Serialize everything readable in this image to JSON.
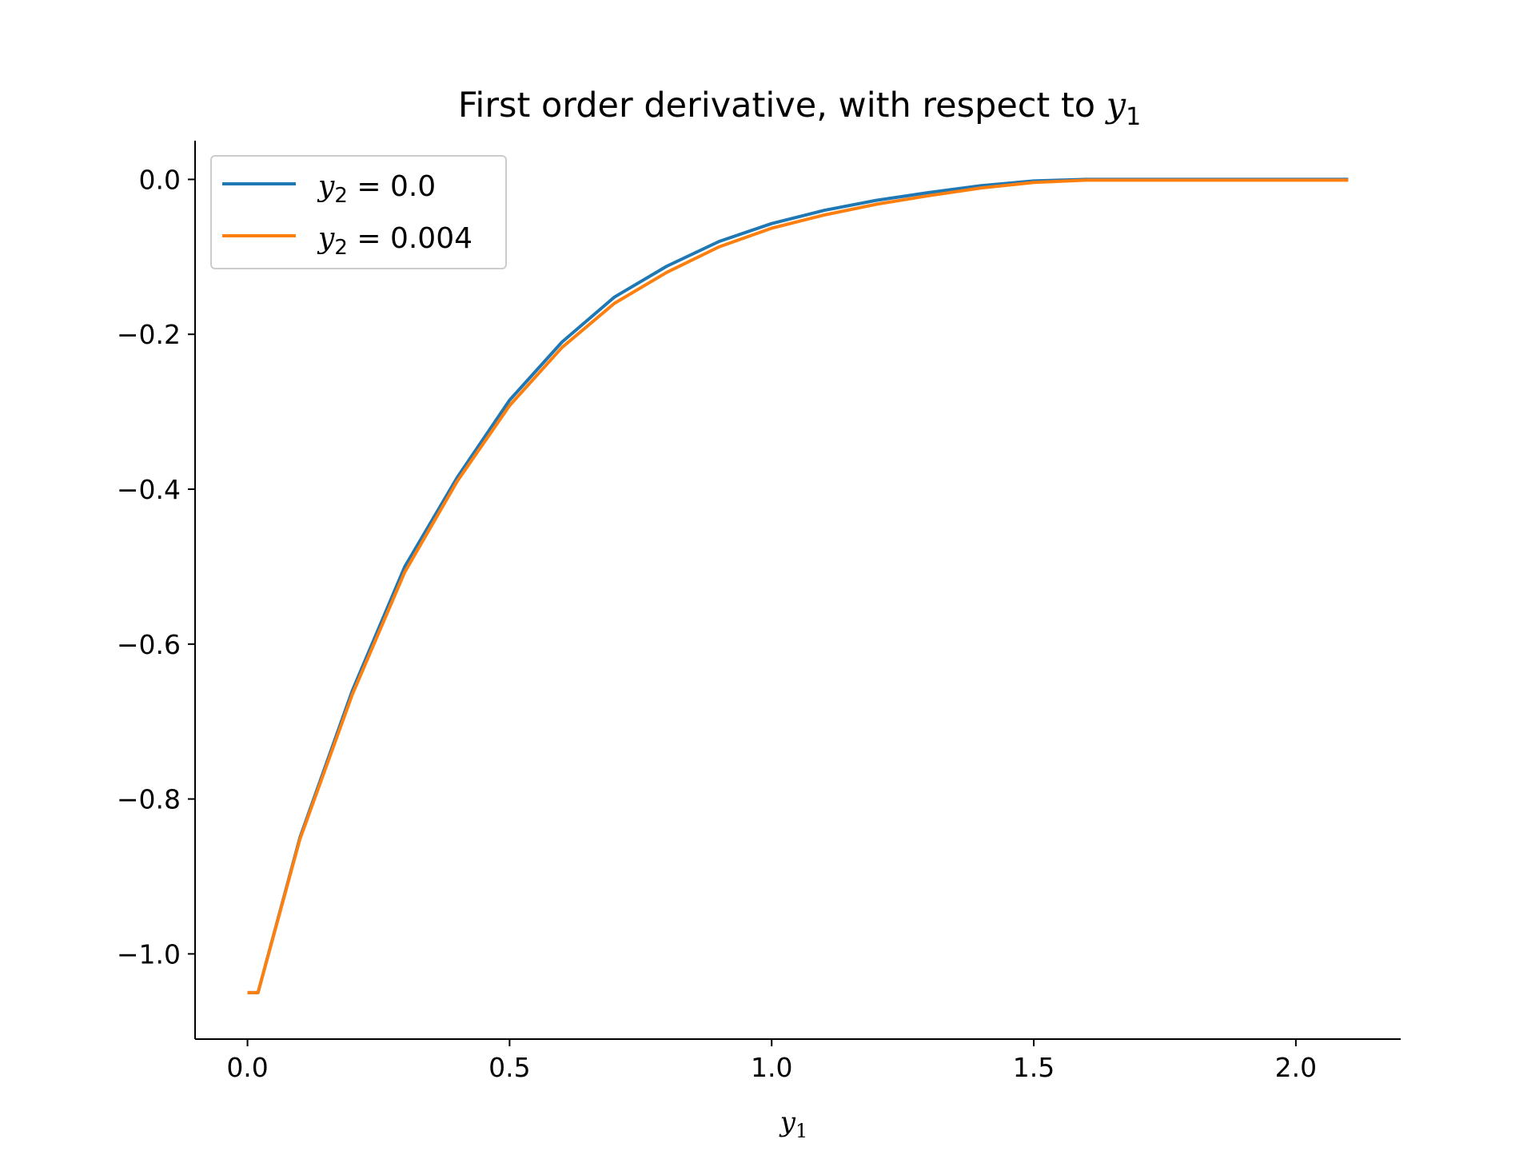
{
  "chart_data": {
    "type": "line",
    "title": "First order derivative, with respect to ",
    "title_var": "y",
    "title_sub": "1",
    "xlabel_var": "y",
    "xlabel_sub": "1",
    "ylabel": "",
    "xlim": [
      -0.1,
      2.2
    ],
    "ylim": [
      -1.11,
      0.05
    ],
    "xticks": [
      0.0,
      0.5,
      1.0,
      1.5,
      2.0
    ],
    "xtick_labels": [
      "0.0",
      "0.5",
      "1.0",
      "1.5",
      "2.0"
    ],
    "yticks": [
      0.0,
      -0.2,
      -0.4,
      -0.6,
      -0.8,
      -1.0
    ],
    "ytick_labels": [
      "0.0",
      "−0.2",
      "−0.4",
      "−0.6",
      "−0.8",
      "−1.0"
    ],
    "grid": false,
    "legend_position": "top-left",
    "series": [
      {
        "name_var": "y",
        "name_sub": "2",
        "name_value": " = 0.0",
        "color": "#1f77b4",
        "x": [
          0.0,
          0.02,
          0.1,
          0.2,
          0.3,
          0.4,
          0.5,
          0.6,
          0.7,
          0.8,
          0.9,
          1.0,
          1.1,
          1.2,
          1.3,
          1.4,
          1.5,
          1.6,
          1.8,
          2.0,
          2.1
        ],
        "y": [
          -1.05,
          -1.05,
          -0.85,
          -0.66,
          -0.5,
          -0.385,
          -0.285,
          -0.21,
          -0.152,
          -0.112,
          -0.08,
          -0.057,
          -0.04,
          -0.027,
          -0.017,
          -0.008,
          -0.002,
          0.0,
          0.0,
          0.0,
          0.0
        ]
      },
      {
        "name_var": "y",
        "name_sub": "2",
        "name_value": " = 0.004",
        "color": "#ff7f0e",
        "x": [
          0.0,
          0.02,
          0.1,
          0.2,
          0.3,
          0.4,
          0.5,
          0.6,
          0.7,
          0.8,
          0.9,
          1.0,
          1.1,
          1.2,
          1.3,
          1.4,
          1.5,
          1.6,
          1.8,
          2.0,
          2.1
        ],
        "y": [
          -1.05,
          -1.05,
          -0.852,
          -0.665,
          -0.507,
          -0.39,
          -0.292,
          -0.217,
          -0.16,
          -0.12,
          -0.087,
          -0.063,
          -0.046,
          -0.032,
          -0.021,
          -0.011,
          -0.004,
          -0.001,
          -0.001,
          -0.001,
          -0.001
        ]
      }
    ]
  }
}
